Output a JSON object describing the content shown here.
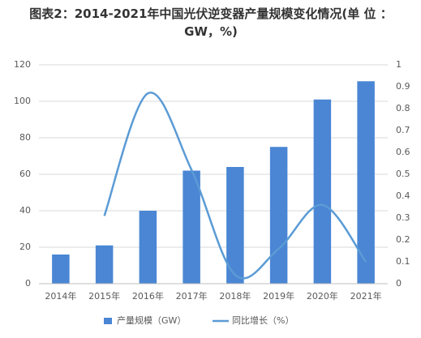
{
  "chart_data": {
    "type": "bar",
    "title": "图表2：2014-2021年中国光伏逆变器产量规模变化情况(单 位 ：GW，%)",
    "categories": [
      "2014年",
      "2015年",
      "2016年",
      "2017年",
      "2018年",
      "2019年",
      "2020年",
      "2021年"
    ],
    "series": [
      {
        "name": "产量规模（GW）",
        "type": "bar",
        "color": "#4a86d4",
        "values": [
          16,
          21,
          40,
          62,
          64,
          75,
          101,
          111
        ]
      },
      {
        "name": "同比增长（%）",
        "type": "line",
        "axis": "y2",
        "color": "#5b9bd5",
        "values": [
          null,
          0.31,
          0.87,
          0.52,
          0.04,
          0.16,
          0.36,
          0.1
        ]
      }
    ],
    "ylim": [
      0,
      120
    ],
    "yticks": [
      0,
      20,
      40,
      60,
      80,
      100,
      120
    ],
    "y2lim": [
      0,
      1
    ],
    "y2ticks": [
      0,
      0.1,
      0.2,
      0.3,
      0.4,
      0.5,
      0.6,
      0.7,
      0.8,
      0.9,
      1
    ],
    "grid": true,
    "legend": "bottom"
  }
}
